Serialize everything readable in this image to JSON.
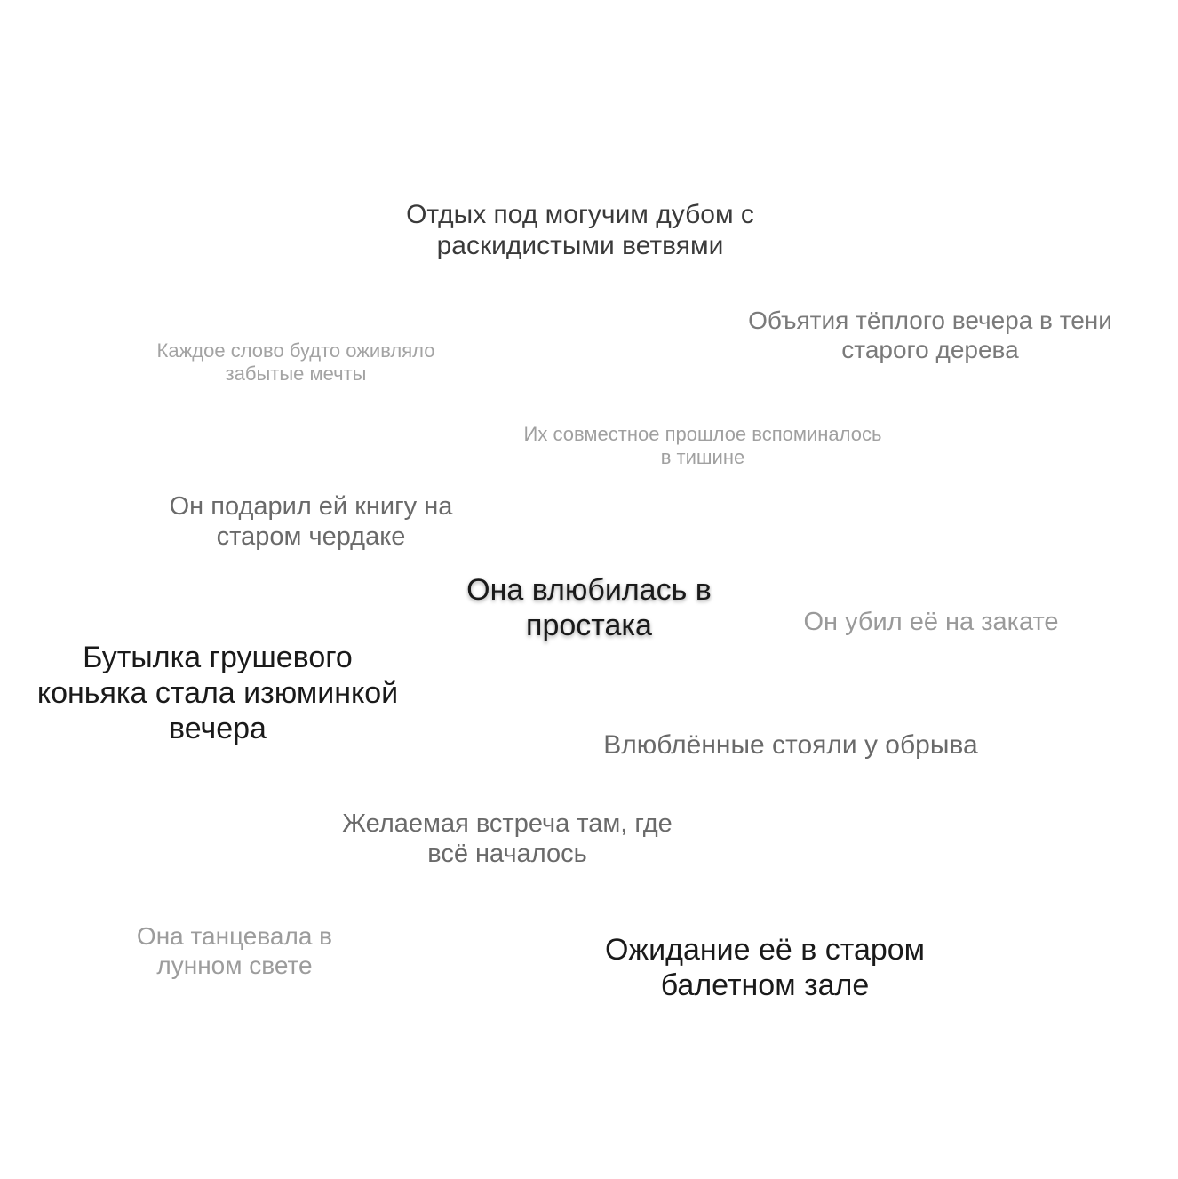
{
  "phrases": [
    {
      "id": "oak",
      "lines": [
        "Отдых под могучим дубом с",
        "раскидистыми ветвями"
      ]
    },
    {
      "id": "evening",
      "lines": [
        "Объятия тёплого вечера в тени",
        "старого дерева"
      ]
    },
    {
      "id": "word",
      "lines": [
        "Каждое слово будто оживляло",
        "забытые мечты"
      ]
    },
    {
      "id": "past",
      "lines": [
        "Их совместное прошлое вспоминалось",
        "в тишине"
      ]
    },
    {
      "id": "book",
      "lines": [
        "Он подарил ей книгу на",
        "старом чердаке"
      ]
    },
    {
      "id": "love",
      "lines": [
        "Она влюбилась в",
        "простака"
      ]
    },
    {
      "id": "sunset",
      "lines": [
        "Он убил её на закате"
      ]
    },
    {
      "id": "cognac",
      "lines": [
        "Бутылка грушевого",
        "коньяка стала изюминкой",
        "вечера"
      ]
    },
    {
      "id": "cliff",
      "lines": [
        "Влюблённые стояли у обрыва"
      ]
    },
    {
      "id": "meeting",
      "lines": [
        "Желаемая встреча там, где",
        "всё началось"
      ]
    },
    {
      "id": "dance",
      "lines": [
        "Она танцевала в",
        "лунном свете"
      ]
    },
    {
      "id": "ballet",
      "lines": [
        "Ожидание её в старом",
        "балетном зале"
      ]
    }
  ]
}
